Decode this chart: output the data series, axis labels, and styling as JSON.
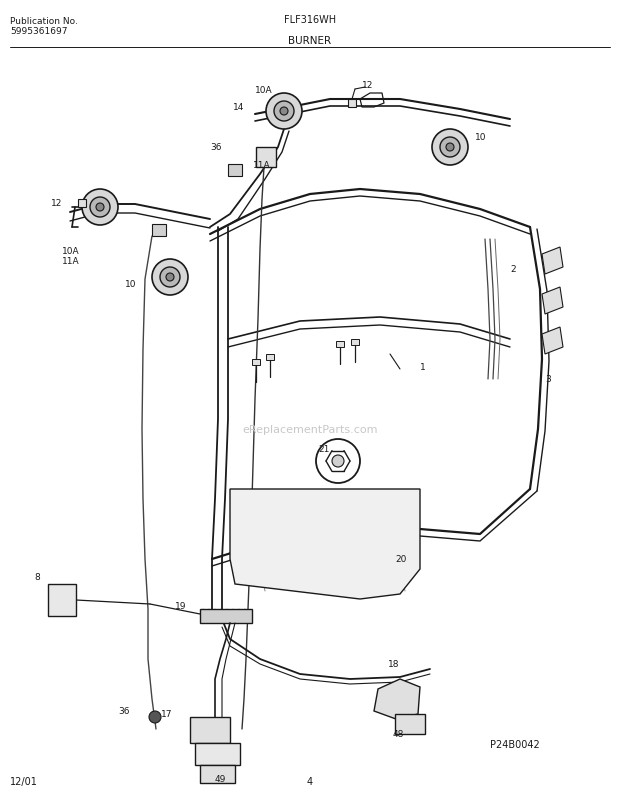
{
  "title_left_line1": "Publication No.",
  "title_left_line2": "5995361697",
  "title_center": "FLF316WH",
  "section_label": "BURNER",
  "watermark": "eReplacementParts.com",
  "part_number": "P24B0042",
  "date": "12/01",
  "page": "4",
  "bg_color": "#ffffff",
  "line_color": "#1a1a1a",
  "text_color": "#1a1a1a",
  "watermark_color": "#c8c8c8",
  "fig_width": 6.2,
  "fig_height": 8.03,
  "dpi": 100
}
